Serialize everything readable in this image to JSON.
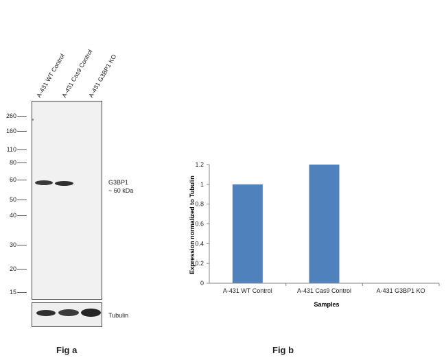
{
  "fig_a": {
    "caption": "Fig a",
    "lanes": [
      "A-431 WT Control",
      "A-431 Cas9 Control",
      "A-431 G3BP1  KO"
    ],
    "markers": [
      "260",
      "160",
      "110",
      "80",
      "60",
      "50",
      "40",
      "30",
      "20",
      "15"
    ],
    "band_label_line1": "G3BP1",
    "band_label_line2": "~ 60 kDa",
    "loading_label": "Tubulin"
  },
  "fig_b": {
    "caption": "Fig b"
  },
  "chart_data": {
    "type": "bar",
    "categories": [
      "A-431 WT Control",
      "A-431 Cas9 Control",
      "A-431 G3BP1 KO"
    ],
    "values": [
      1.0,
      1.2,
      0.0
    ],
    "title": "",
    "xlabel": "Samples",
    "ylabel": "Expression  normalized to Tubulin",
    "ylim": [
      0,
      1.2
    ],
    "yticks": [
      "0",
      "0.2",
      "0.4",
      "0.6",
      "0.8",
      "1",
      "1.2"
    ],
    "grid": false,
    "legend": "none",
    "bar_color": "#4f81bd"
  }
}
